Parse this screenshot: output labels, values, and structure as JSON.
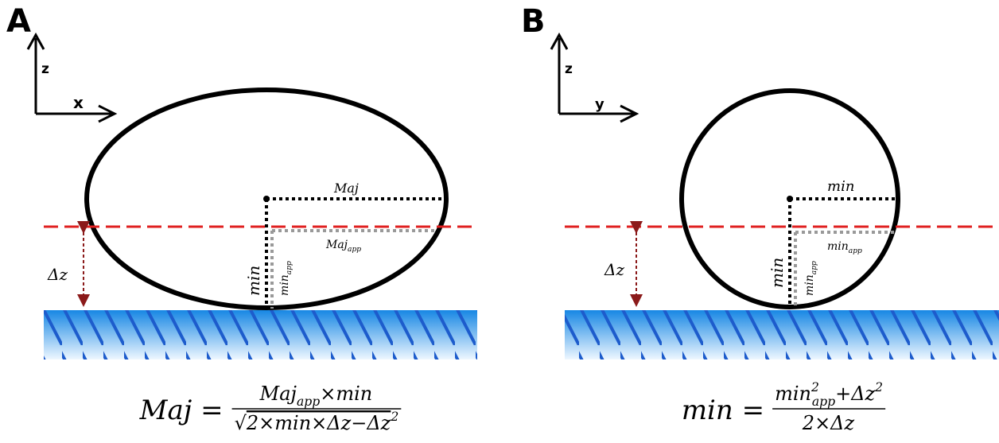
{
  "panels": [
    {
      "label": "A",
      "axis_vertical": "z",
      "axis_horizontal": "x",
      "dim_horizontal": [
        {
          "text": "Maj"
        }
      ],
      "dim_horizontal_app": [
        {
          "text": "Maj"
        },
        {
          "sub": "app"
        }
      ],
      "dim_vertical": [
        {
          "text": "min"
        }
      ],
      "dim_vertical_app": [
        {
          "text": "min"
        },
        {
          "sub": "app"
        }
      ],
      "gap": [
        {
          "text": "Δz"
        }
      ],
      "formula": {
        "lhs": [
          {
            "text": "Maj ="
          }
        ],
        "numerator": [
          {
            "text": "Maj"
          },
          {
            "sub": "app"
          },
          {
            "text": "×min"
          }
        ],
        "denominator": [
          {
            "text": "√"
          },
          {
            "root": "2×min×Δz−Δz"
          },
          {
            "sup": "2"
          }
        ]
      }
    },
    {
      "label": "B",
      "axis_vertical": "z",
      "axis_horizontal": "y",
      "dim_horizontal": [
        {
          "text": "min"
        }
      ],
      "dim_horizontal_app": [
        {
          "text": "min"
        },
        {
          "sub": "app"
        }
      ],
      "dim_vertical": [
        {
          "text": "min"
        }
      ],
      "dim_vertical_app": [
        {
          "text": "min"
        },
        {
          "sub": "app"
        }
      ],
      "gap": [
        {
          "text": "Δz"
        }
      ],
      "formula": {
        "lhs": [
          {
            "text": "min ="
          }
        ],
        "numerator": [
          {
            "text": "min"
          },
          {
            "sup": "2"
          },
          {
            "sub": "app"
          },
          {
            "text": "+Δz"
          },
          {
            "sup": "2"
          }
        ],
        "denominator": [
          {
            "text": "2×Δz"
          }
        ]
      }
    }
  ]
}
